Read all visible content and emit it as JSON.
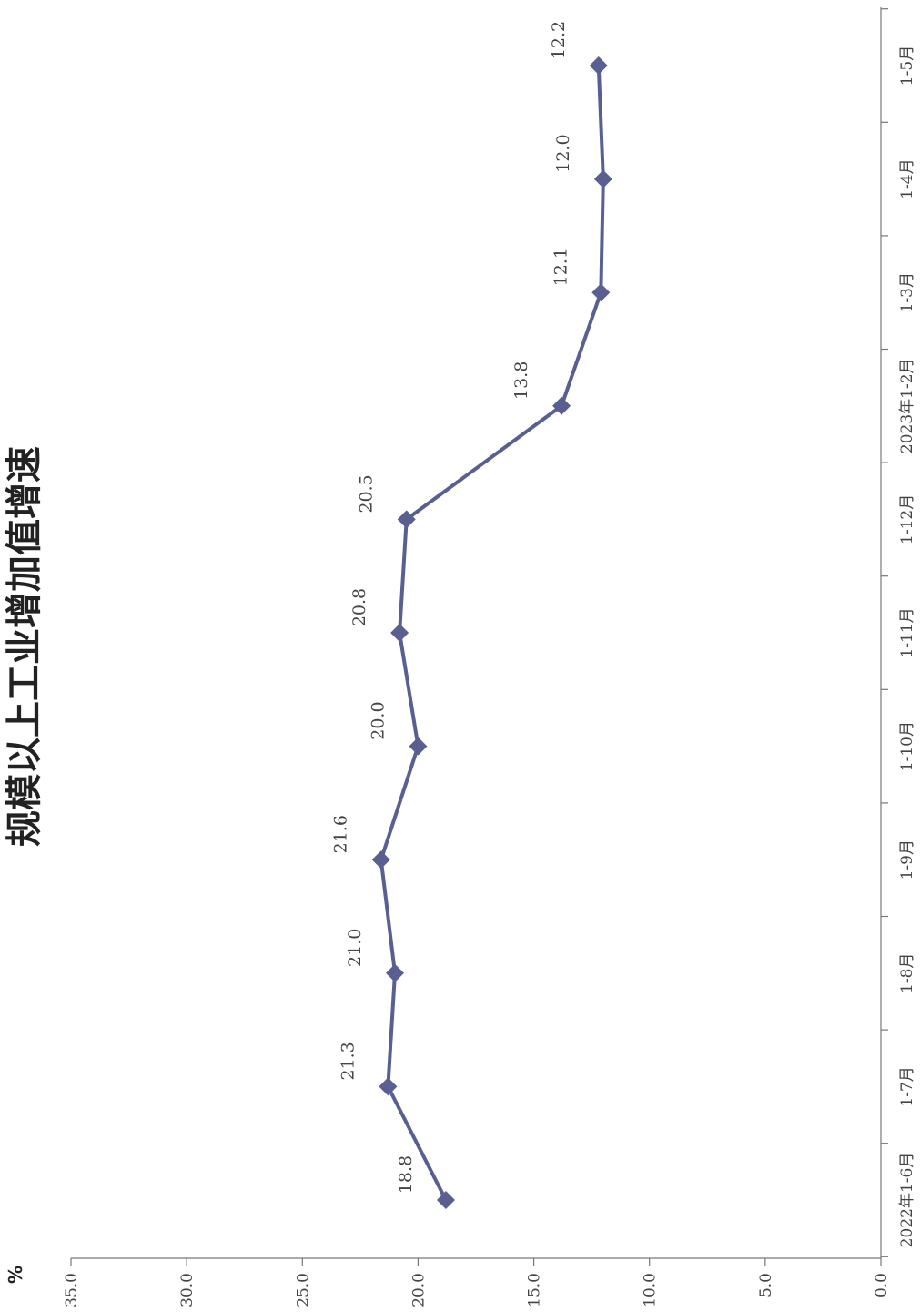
{
  "chart_data": {
    "type": "line",
    "title": "规模以上工业增加值增速",
    "ylabel": "%",
    "xlabel": "",
    "categories": [
      "2022年1-6月",
      "1-7月",
      "1-8月",
      "1-9月",
      "1-10月",
      "1-11月",
      "1-12月",
      "2023年1-2月",
      "1-3月",
      "1-4月",
      "1-5月"
    ],
    "series": [
      {
        "values": [
          18.8,
          21.3,
          21.0,
          21.6,
          20.0,
          20.8,
          20.5,
          13.8,
          12.1,
          12.0,
          12.2
        ]
      }
    ],
    "data_labels": [
      "18.8",
      "21.3",
      "21.0",
      "21.6",
      "20.0",
      "20.8",
      "20.5",
      "13.8",
      "12.1",
      "12.0",
      "12.2"
    ],
    "ylim": [
      0,
      35
    ],
    "y_ticks": [
      "0.0",
      "5.0",
      "10.0",
      "15.0",
      "20.0",
      "25.0",
      "30.0",
      "35.0"
    ],
    "grid": false,
    "legend": "none",
    "orientation": "rotated 90° clockwise",
    "colors": {
      "line": "#5a5f91",
      "axis": "#777777"
    }
  }
}
